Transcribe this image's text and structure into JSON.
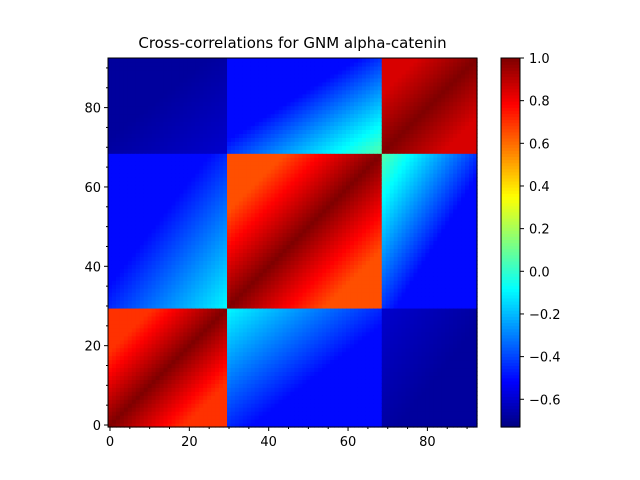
{
  "chart_data": {
    "type": "heatmap",
    "title": "Cross-correlations for GNM alpha-catenin",
    "xlabel": "",
    "ylabel": "",
    "n_residues": 93,
    "xlim": [
      0,
      92
    ],
    "ylim": [
      0,
      92
    ],
    "x_ticks": [
      "0",
      "20",
      "40",
      "60",
      "80"
    ],
    "x_tick_values": [
      0,
      20,
      40,
      60,
      80
    ],
    "y_ticks": [
      "0",
      "20",
      "40",
      "60",
      "80"
    ],
    "y_tick_values": [
      0,
      20,
      40,
      60,
      80
    ],
    "colormap": "jet",
    "colorbar": {
      "vmin": -0.73,
      "vmax": 1.0,
      "ticks": [
        -0.6,
        -0.4,
        -0.2,
        0.0,
        0.2,
        0.4,
        0.6,
        0.8,
        1.0
      ],
      "tick_labels": [
        "−0.6",
        "−0.4",
        "−0.2",
        "0.0",
        "0.2",
        "0.4",
        "0.6",
        "0.8",
        "1.0"
      ]
    },
    "domains": [
      {
        "start": 0,
        "end": 29
      },
      {
        "start": 30,
        "end": 68
      },
      {
        "start": 69,
        "end": 92
      }
    ],
    "domain_correlation_blocks": [
      {
        "domains": [
          0,
          0
        ],
        "diagonal": 1.0,
        "off_diagonal": 0.7
      },
      {
        "domains": [
          1,
          1
        ],
        "diagonal": 1.0,
        "off_diagonal": 0.65
      },
      {
        "domains": [
          2,
          2
        ],
        "diagonal": 1.0,
        "off_diagonal": 0.85
      },
      {
        "domains": [
          0,
          1
        ],
        "near": -0.1,
        "far": -0.5
      },
      {
        "domains": [
          1,
          2
        ],
        "near": 0.05,
        "far": -0.5
      },
      {
        "domains": [
          0,
          2
        ],
        "near": -0.6,
        "far": -0.68
      }
    ]
  }
}
